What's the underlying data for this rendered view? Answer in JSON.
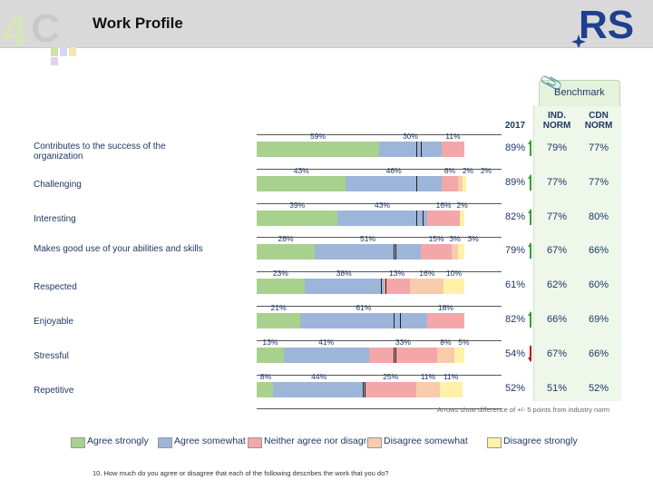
{
  "header": {
    "title": "Work Profile"
  },
  "benchmark": {
    "label": "Benchmark"
  },
  "columns": {
    "year": "2017",
    "ind": "IND.\nNORM",
    "cdn": "CDN\nNORM"
  },
  "footnote": "Arrows show difference of +/- 5 points from industry norm",
  "question": "10. How much do you agree or disagree that each of the following describes the work that you do?",
  "colors": {
    "agree_strongly": "#a9d18e",
    "agree_somewhat": "#9db5d9",
    "neither": "#f4a7a9",
    "disagree_somewhat": "#f8cbad",
    "disagree_strongly": "#fff2a8",
    "arrow_up": "#33a02c",
    "arrow_down": "#c00000"
  },
  "chart_data": {
    "type": "bar",
    "categories": [
      "Contributes to the success of the organization",
      "Challenging",
      "Interesting",
      "Makes good use of your abilities and skills",
      "Respected",
      "Enjoyable",
      "Stressful",
      "Repetitive"
    ],
    "series": [
      {
        "name": "Agree strongly",
        "values": [
          59,
          43,
          39,
          28,
          23,
          21,
          13,
          8
        ]
      },
      {
        "name": "Agree somewhat",
        "values": [
          30,
          46,
          43,
          51,
          38,
          61,
          41,
          44
        ]
      },
      {
        "name": "Neither agree nor disagree",
        "values": [
          11,
          8,
          16,
          15,
          13,
          18,
          33,
          25
        ]
      },
      {
        "name": "Disagree somewhat",
        "values": [
          0,
          2,
          0,
          3,
          16,
          0,
          8,
          11
        ]
      },
      {
        "name": "Disagree strongly",
        "values": [
          0,
          2,
          2,
          3,
          10,
          0,
          5,
          11
        ]
      }
    ],
    "labels": [
      [
        "59%",
        "30%",
        "11%",
        "",
        ""
      ],
      [
        "43%",
        "46%",
        "8%",
        "2%",
        "2%"
      ],
      [
        "39%",
        "43%",
        "16%",
        "",
        "2%"
      ],
      [
        "28%",
        "51%",
        "15%",
        "3%",
        "3%"
      ],
      [
        "23%",
        "38%",
        "13%",
        "16%",
        "10%"
      ],
      [
        "21%",
        "61%",
        "18%",
        "",
        ""
      ],
      [
        "13%",
        "41%",
        "33%",
        "8%",
        "5%"
      ],
      [
        "8%",
        "44%",
        "25%",
        "11%",
        "11%"
      ]
    ],
    "benchmark_rows": [
      {
        "y2017": "89%",
        "ind": "79%",
        "cdn": "77%",
        "arrow": "up",
        "ind_pos": 79,
        "cdn_pos": 77
      },
      {
        "y2017": "89%",
        "ind": "77%",
        "cdn": "77%",
        "arrow": "up",
        "ind_pos": 77,
        "cdn_pos": 77
      },
      {
        "y2017": "82%",
        "ind": "77%",
        "cdn": "80%",
        "arrow": "up",
        "ind_pos": 77,
        "cdn_pos": 80
      },
      {
        "y2017": "79%",
        "ind": "67%",
        "cdn": "66%",
        "arrow": "up",
        "ind_pos": 67,
        "cdn_pos": 66
      },
      {
        "y2017": "61%",
        "ind": "62%",
        "cdn": "60%",
        "arrow": "",
        "ind_pos": 62,
        "cdn_pos": 60
      },
      {
        "y2017": "82%",
        "ind": "66%",
        "cdn": "69%",
        "arrow": "up",
        "ind_pos": 66,
        "cdn_pos": 69
      },
      {
        "y2017": "54%",
        "ind": "67%",
        "cdn": "66%",
        "arrow": "down",
        "ind_pos": 67,
        "cdn_pos": 66
      },
      {
        "y2017": "52%",
        "ind": "51%",
        "cdn": "52%",
        "arrow": "",
        "ind_pos": 51,
        "cdn_pos": 52
      }
    ],
    "legend_position": "bottom"
  }
}
